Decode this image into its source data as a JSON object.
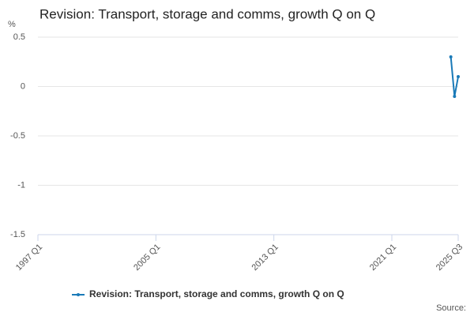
{
  "chart_data": {
    "type": "line",
    "title": "Revision: Transport, storage and comms, growth Q on Q",
    "y_label": "%",
    "source": "Source:",
    "categories": [
      "1997 Q1",
      null,
      null,
      null,
      null,
      null,
      null,
      null,
      null,
      null,
      null,
      null,
      null,
      null,
      null,
      null,
      null,
      null,
      null,
      null,
      null,
      null,
      null,
      null,
      null,
      null,
      null,
      null,
      null,
      null,
      null,
      null,
      "2005 Q1",
      null,
      null,
      null,
      null,
      null,
      null,
      null,
      null,
      null,
      null,
      null,
      null,
      null,
      null,
      null,
      null,
      null,
      null,
      null,
      null,
      null,
      null,
      null,
      null,
      null,
      null,
      null,
      null,
      null,
      null,
      null,
      "2013 Q1",
      null,
      null,
      null,
      null,
      null,
      null,
      null,
      null,
      null,
      null,
      null,
      null,
      null,
      null,
      null,
      null,
      null,
      null,
      null,
      null,
      null,
      null,
      null,
      null,
      null,
      null,
      null,
      null,
      null,
      null,
      null,
      "2021 Q1",
      null,
      null,
      null,
      null,
      null,
      null,
      null,
      null,
      null,
      null,
      null,
      null,
      null,
      null,
      null,
      null,
      null,
      "2025 Q3"
    ],
    "series": [
      {
        "name": "Revision: Transport, storage and comms, growth Q on Q",
        "color": "#1a7ab8",
        "values": [
          null,
          null,
          null,
          null,
          null,
          null,
          null,
          null,
          null,
          null,
          null,
          null,
          null,
          null,
          null,
          null,
          null,
          null,
          null,
          null,
          null,
          null,
          null,
          null,
          null,
          null,
          null,
          null,
          null,
          null,
          null,
          null,
          null,
          null,
          null,
          null,
          null,
          null,
          null,
          null,
          null,
          null,
          null,
          null,
          null,
          null,
          null,
          null,
          null,
          null,
          null,
          null,
          null,
          null,
          null,
          null,
          null,
          null,
          null,
          null,
          null,
          null,
          null,
          null,
          null,
          null,
          null,
          null,
          null,
          null,
          null,
          null,
          null,
          null,
          null,
          null,
          null,
          null,
          null,
          null,
          null,
          null,
          null,
          null,
          null,
          null,
          null,
          null,
          null,
          null,
          null,
          null,
          null,
          null,
          null,
          null,
          null,
          null,
          null,
          null,
          null,
          null,
          null,
          null,
          null,
          null,
          null,
          null,
          null,
          null,
          null,
          null,
          0.3,
          -0.1,
          0.1
        ]
      }
    ],
    "ylim": [
      -1.5,
      0.5
    ],
    "yticks": [
      -1.5,
      -1,
      -0.5,
      0,
      0.5
    ],
    "grid": true
  }
}
